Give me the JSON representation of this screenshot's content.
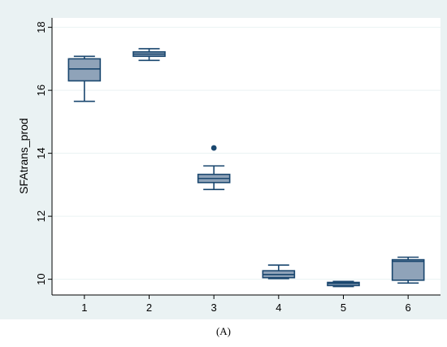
{
  "chart_data": {
    "type": "box",
    "ylabel": "SFAtrans_prod",
    "ylim": [
      9.5,
      18.3
    ],
    "yticks": [
      10,
      12,
      14,
      16,
      18
    ],
    "categories": [
      "1",
      "2",
      "3",
      "4",
      "5",
      "6"
    ],
    "boxes": [
      {
        "category": "1",
        "whisker_low": 15.65,
        "q1": 16.3,
        "median": 16.68,
        "q3": 17.0,
        "whisker_high": 17.08,
        "outliers": []
      },
      {
        "category": "2",
        "whisker_low": 16.95,
        "q1": 17.08,
        "median": 17.15,
        "q3": 17.22,
        "whisker_high": 17.32,
        "outliers": []
      },
      {
        "category": "3",
        "whisker_low": 12.85,
        "q1": 13.07,
        "median": 13.2,
        "q3": 13.33,
        "whisker_high": 13.6,
        "outliers": [
          14.17
        ]
      },
      {
        "category": "4",
        "whisker_low": 10.02,
        "q1": 10.05,
        "median": 10.15,
        "q3": 10.27,
        "whisker_high": 10.45,
        "outliers": []
      },
      {
        "category": "5",
        "whisker_low": 9.77,
        "q1": 9.8,
        "median": 9.87,
        "q3": 9.9,
        "whisker_high": 9.93,
        "outliers": []
      },
      {
        "category": "6",
        "whisker_low": 9.88,
        "q1": 9.97,
        "median": 10.57,
        "q3": 10.62,
        "whisker_high": 10.7,
        "outliers": []
      }
    ],
    "grid": true,
    "colors": {
      "box_fill": "#8fa3b9",
      "box_line": "#1a476f",
      "outer_bg": "#eaf2f3",
      "plot_bg": "#ffffff",
      "grid": "#eaf2f3"
    }
  },
  "caption": "(A)"
}
